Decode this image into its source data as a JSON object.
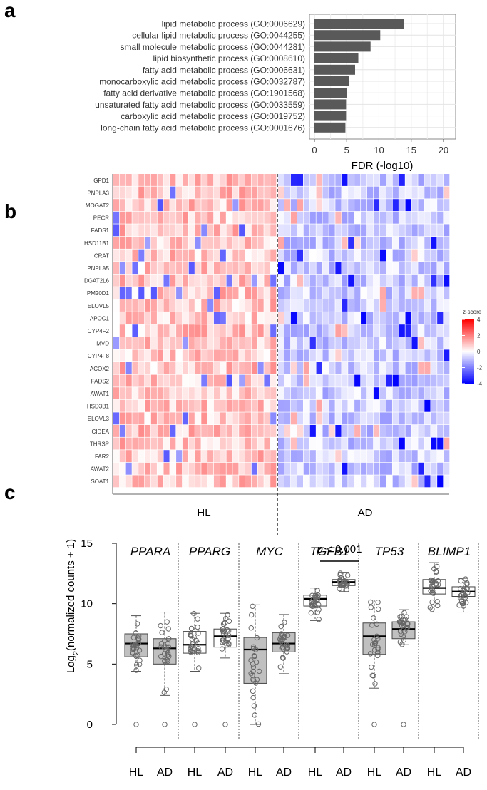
{
  "panels": {
    "a": "a",
    "b": "b",
    "c": "c"
  },
  "chart_data": [
    {
      "type": "bar",
      "orientation": "horizontal",
      "categories": [
        "lipid metabolic process (GO:0006629)",
        "cellular lipid metabolic process (GO:0044255)",
        "small molecule metabolic process (GO:0044281)",
        "lipid biosynthetic process (GO:0008610)",
        "fatty acid metabolic process (GO:0006631)",
        "monocarboxylic acid metabolic process (GO:0032787)",
        "fatty acid derivative metabolic process (GO:1901568)",
        "unsaturated fatty acid metabolic process (GO:0033559)",
        "carboxylic acid metabolic process (GO:0019752)",
        "long-chain fatty acid metabolic process (GO:0001676)"
      ],
      "values": [
        13.9,
        10.2,
        8.7,
        6.8,
        6.3,
        5.4,
        5.0,
        4.9,
        4.9,
        4.8
      ],
      "xlabel": "FDR (-log10)",
      "xlim": [
        0,
        21
      ],
      "xticks": [
        "0",
        "5",
        "10",
        "15",
        "20"
      ],
      "grid": true
    },
    {
      "type": "heatmap",
      "rows": [
        "GPD1",
        "PNPLA3",
        "MOGAT2",
        "PECR",
        "FADS1",
        "HSD11B1",
        "CRAT",
        "PNPLA5",
        "DGAT2L6",
        "PM20D1",
        "ELOVL5",
        "APOC1",
        "CYP4F2",
        "MVD",
        "CYP4F8",
        "ACOX2",
        "FADS2",
        "AWAT1",
        "HSD3B1",
        "ELOVL3",
        "CIDEA",
        "THRSP",
        "FAR2",
        "AWAT2",
        "SOAT1"
      ],
      "groups": [
        "HL",
        "AD"
      ],
      "columns_per_group": [
        26,
        27
      ],
      "value_range": [
        -4,
        4
      ],
      "legend": {
        "title": "z-score",
        "ticks": [
          "4",
          "2",
          "0",
          "-2",
          "-4"
        ]
      }
    },
    {
      "type": "box",
      "ylabel_prefix": "Log",
      "ylabel_sub": "2",
      "ylabel_suffix": "(normalized counts + 1)",
      "ylim": [
        0,
        15
      ],
      "yticks": [
        "0",
        "5",
        "10",
        "15"
      ],
      "xticks": [
        "HL",
        "AD",
        "HL",
        "AD",
        "HL",
        "AD",
        "HL",
        "AD",
        "HL",
        "AD",
        "HL",
        "AD"
      ],
      "genes": [
        {
          "name": "PPARA",
          "hl": {
            "q1": 5.6,
            "median": 6.7,
            "q3": 7.5,
            "min": 4.4,
            "max": 9.0,
            "fill": "#c0c0c0"
          },
          "ad": {
            "q1": 5.0,
            "median": 6.3,
            "q3": 7.1,
            "min": 2.4,
            "max": 9.3,
            "fill": "#c0c0c0"
          }
        },
        {
          "name": "PPARG",
          "hl": {
            "q1": 5.9,
            "median": 6.6,
            "q3": 7.7,
            "min": 4.4,
            "max": 9.2,
            "fill": "#ffffff"
          },
          "ad": {
            "q1": 6.4,
            "median": 7.3,
            "q3": 7.9,
            "min": 5.5,
            "max": 9.2,
            "fill": "#ffffff"
          }
        },
        {
          "name": "MYC",
          "hl": {
            "q1": 3.4,
            "median": 6.2,
            "q3": 7.2,
            "min": 0.0,
            "max": 9.9,
            "fill": "#c0c0c0"
          },
          "ad": {
            "q1": 6.0,
            "median": 6.7,
            "q3": 7.6,
            "min": 4.2,
            "max": 9.1,
            "fill": "#c0c0c0"
          }
        },
        {
          "name": "TGFB1",
          "hl": {
            "q1": 9.8,
            "median": 10.4,
            "q3": 10.7,
            "min": 8.6,
            "max": 11.3,
            "fill": "#ffffff"
          },
          "ad": {
            "q1": 11.5,
            "median": 11.8,
            "q3": 12.0,
            "min": 11.0,
            "max": 12.6,
            "fill": "#ffffff"
          }
        },
        {
          "name": "TP53",
          "hl": {
            "q1": 5.8,
            "median": 7.3,
            "q3": 8.4,
            "min": 3.0,
            "max": 10.3,
            "fill": "#c0c0c0"
          },
          "ad": {
            "q1": 7.1,
            "median": 7.9,
            "q3": 8.5,
            "min": 6.6,
            "max": 9.5,
            "fill": "#c0c0c0"
          }
        },
        {
          "name": "BLIMP1",
          "hl": {
            "q1": 10.8,
            "median": 11.3,
            "q3": 12.0,
            "min": 9.3,
            "max": 13.4,
            "fill": "#ffffff"
          },
          "ad": {
            "q1": 10.6,
            "median": 11.0,
            "q3": 11.4,
            "min": 9.3,
            "max": 12.1,
            "fill": "#ffffff"
          }
        }
      ],
      "annotation": {
        "prefix": "p",
        "text": " < 0.001",
        "gene": "TGFB1"
      }
    }
  ]
}
